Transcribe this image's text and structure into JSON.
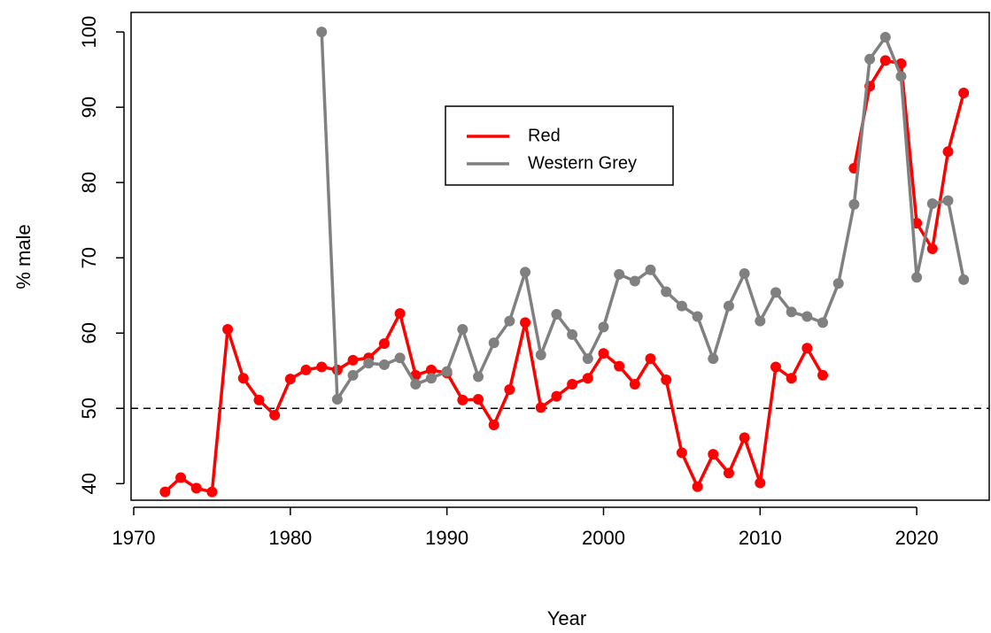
{
  "chart_data": {
    "type": "line",
    "x_label": "Year",
    "y_label": "% male",
    "x": [
      1972,
      1973,
      1974,
      1975,
      1976,
      1977,
      1978,
      1979,
      1980,
      1981,
      1982,
      1983,
      1984,
      1985,
      1986,
      1987,
      1988,
      1989,
      1990,
      1991,
      1992,
      1993,
      1994,
      1995,
      1996,
      1997,
      1998,
      1999,
      2000,
      2001,
      2002,
      2003,
      2004,
      2005,
      2006,
      2007,
      2008,
      2009,
      2010,
      2011,
      2012,
      2013,
      2014,
      2015,
      2016,
      2017,
      2018,
      2019,
      2020,
      2021,
      2022,
      2023
    ],
    "series": [
      {
        "name": "Red",
        "color": "#ff0000",
        "values": [
          38.9,
          40.8,
          39.4,
          38.9,
          60.5,
          54.0,
          51.1,
          49.1,
          53.9,
          55.1,
          55.5,
          55.1,
          56.4,
          56.7,
          58.6,
          62.6,
          54.4,
          55.1,
          54.7,
          51.1,
          51.2,
          47.8,
          52.5,
          61.4,
          50.1,
          51.6,
          53.2,
          54.0,
          57.3,
          55.6,
          53.2,
          56.6,
          53.8,
          44.1,
          39.6,
          43.9,
          41.4,
          46.1,
          40.1,
          55.5,
          54.0,
          58.0,
          54.4,
          null,
          81.9,
          92.8,
          96.2,
          95.8,
          74.6,
          71.2,
          84.1,
          91.9
        ]
      },
      {
        "name": "Western Grey",
        "color": "#808080",
        "values": [
          null,
          null,
          null,
          null,
          null,
          null,
          null,
          null,
          null,
          null,
          100,
          51.2,
          54.4,
          56.0,
          55.8,
          56.7,
          53.2,
          54.0,
          54.9,
          60.5,
          54.2,
          58.7,
          61.6,
          68.1,
          57.1,
          62.5,
          59.8,
          56.6,
          60.8,
          67.8,
          66.9,
          68.4,
          65.5,
          63.6,
          62.2,
          56.6,
          63.6,
          67.9,
          61.6,
          65.4,
          62.8,
          62.2,
          61.4,
          66.6,
          77.1,
          96.4,
          99.3,
          94.1,
          67.4,
          77.2,
          77.6,
          67.1
        ]
      }
    ],
    "reference_line": 50,
    "xlim": [
      1969.83,
      2024.63
    ],
    "xticks": [
      1970,
      1980,
      1990,
      2000,
      2010,
      2020
    ],
    "ylim": [
      37.8,
      102.6
    ],
    "yticks": [
      40,
      50,
      60,
      70,
      80,
      90,
      100
    ],
    "legend": "top-center"
  }
}
